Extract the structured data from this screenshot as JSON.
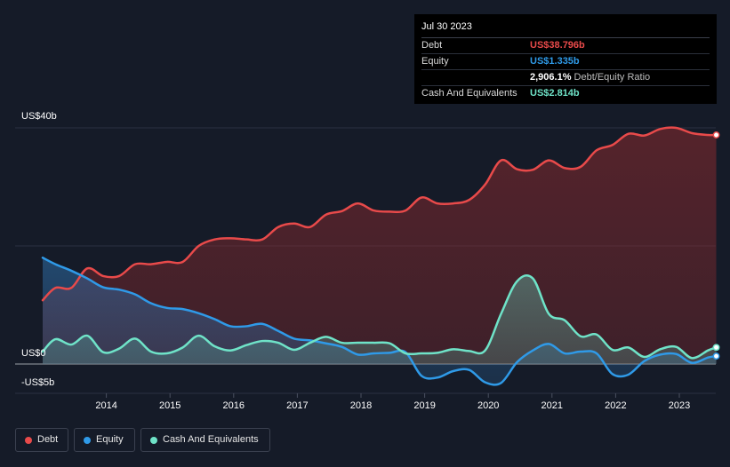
{
  "tooltip": {
    "date": "Jul 30 2023",
    "rows": [
      {
        "label": "Debt",
        "value": "US$38.796b",
        "color": "#e84a4a"
      },
      {
        "label": "Equity",
        "value": "US$1.335b",
        "color": "#2f9ae8"
      },
      {
        "label": "",
        "value": "2,906.1%",
        "suffix": "Debt/Equity Ratio",
        "color": "#ffffff"
      },
      {
        "label": "Cash And Equivalents",
        "value": "US$2.814b",
        "color": "#6fe3c8"
      }
    ]
  },
  "chart_data": {
    "type": "area",
    "title": "",
    "xlabel": "",
    "ylabel": "",
    "ylim": [
      -5,
      40
    ],
    "y_tick_labels": [
      "US$40b",
      "US$0",
      "-US$5b"
    ],
    "x_tick_labels": [
      "2014",
      "2015",
      "2016",
      "2017",
      "2018",
      "2019",
      "2020",
      "2021",
      "2022",
      "2023"
    ],
    "series": [
      {
        "name": "Debt",
        "color": "#e84a4a",
        "x": [
          2013.0,
          2013.2,
          2013.45,
          2013.7,
          2013.95,
          2014.2,
          2014.45,
          2014.7,
          2014.95,
          2015.2,
          2015.45,
          2015.7,
          2015.95,
          2016.2,
          2016.45,
          2016.7,
          2016.95,
          2017.2,
          2017.45,
          2017.7,
          2017.95,
          2018.2,
          2018.45,
          2018.7,
          2018.95,
          2019.2,
          2019.45,
          2019.7,
          2019.95,
          2020.2,
          2020.45,
          2020.7,
          2020.95,
          2021.2,
          2021.45,
          2021.7,
          2021.95,
          2022.2,
          2022.45,
          2022.7,
          2022.95,
          2023.2,
          2023.45,
          2023.58
        ],
        "values": [
          10.8,
          12.9,
          12.9,
          16.2,
          14.9,
          14.9,
          16.9,
          16.9,
          17.3,
          17.3,
          20.0,
          21.1,
          21.3,
          21.1,
          21.1,
          23.2,
          23.8,
          23.2,
          25.3,
          25.9,
          27.2,
          26.0,
          25.8,
          26.0,
          28.2,
          27.2,
          27.2,
          27.8,
          30.4,
          34.5,
          33.0,
          32.9,
          34.5,
          33.2,
          33.4,
          36.2,
          37.1,
          39.0,
          38.7,
          39.8,
          40.0,
          39.1,
          38.8,
          38.796
        ]
      },
      {
        "name": "Equity",
        "color": "#2f9ae8",
        "x": [
          2013.0,
          2013.2,
          2013.45,
          2013.7,
          2013.95,
          2014.2,
          2014.45,
          2014.7,
          2014.95,
          2015.2,
          2015.45,
          2015.7,
          2015.95,
          2016.2,
          2016.45,
          2016.7,
          2016.95,
          2017.2,
          2017.45,
          2017.7,
          2017.95,
          2018.2,
          2018.45,
          2018.7,
          2018.95,
          2019.2,
          2019.45,
          2019.7,
          2019.95,
          2020.2,
          2020.45,
          2020.7,
          2020.95,
          2021.2,
          2021.45,
          2021.7,
          2021.95,
          2022.2,
          2022.45,
          2022.7,
          2022.95,
          2023.2,
          2023.45,
          2023.58
        ],
        "values": [
          18.0,
          16.9,
          15.8,
          14.5,
          13.0,
          12.6,
          11.8,
          10.3,
          9.5,
          9.3,
          8.6,
          7.6,
          6.4,
          6.4,
          6.8,
          5.6,
          4.3,
          4.0,
          3.5,
          2.9,
          1.6,
          1.8,
          1.9,
          2.0,
          -2.0,
          -2.3,
          -1.2,
          -1.0,
          -3.1,
          -3.2,
          0.3,
          2.3,
          3.4,
          1.8,
          2.1,
          1.8,
          -1.7,
          -1.8,
          0.5,
          1.6,
          1.7,
          0.2,
          1.1,
          1.335
        ]
      },
      {
        "name": "Cash And Equivalents",
        "color": "#6fe3c8",
        "x": [
          2013.0,
          2013.2,
          2013.45,
          2013.7,
          2013.95,
          2014.2,
          2014.45,
          2014.7,
          2014.95,
          2015.2,
          2015.45,
          2015.7,
          2015.95,
          2016.2,
          2016.45,
          2016.7,
          2016.95,
          2017.2,
          2017.45,
          2017.7,
          2017.95,
          2018.2,
          2018.45,
          2018.7,
          2018.95,
          2019.2,
          2019.45,
          2019.7,
          2019.95,
          2020.2,
          2020.45,
          2020.7,
          2020.95,
          2021.2,
          2021.45,
          2021.7,
          2021.95,
          2022.2,
          2022.45,
          2022.7,
          2022.95,
          2023.2,
          2023.45,
          2023.58
        ],
        "values": [
          2.1,
          4.2,
          3.3,
          4.8,
          2.0,
          2.6,
          4.3,
          2.1,
          1.8,
          2.8,
          4.8,
          3.0,
          2.3,
          3.2,
          3.9,
          3.6,
          2.4,
          3.6,
          4.6,
          3.6,
          3.6,
          3.6,
          3.5,
          1.8,
          1.8,
          1.9,
          2.5,
          2.2,
          2.3,
          8.5,
          14.0,
          14.5,
          8.5,
          7.4,
          4.7,
          5.0,
          2.4,
          2.8,
          1.2,
          2.5,
          2.9,
          1.0,
          2.3,
          2.814
        ]
      }
    ],
    "legend": [
      {
        "label": "Debt",
        "color": "#e84a4a"
      },
      {
        "label": "Equity",
        "color": "#2f9ae8"
      },
      {
        "label": "Cash And Equivalents",
        "color": "#6fe3c8"
      }
    ]
  }
}
